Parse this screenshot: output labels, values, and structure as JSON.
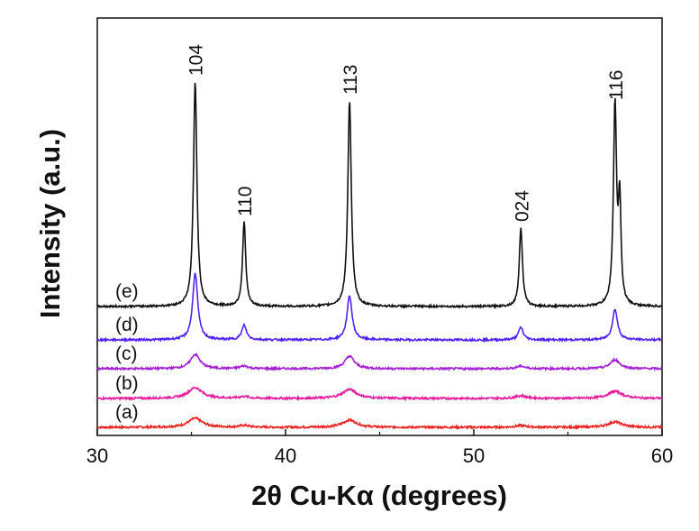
{
  "chart_data": {
    "type": "line",
    "xlabel": "2θ Cu-Kα (degrees)",
    "ylabel": "Intensity (a.u.)",
    "xlim": [
      30,
      60
    ],
    "xticks": [
      30,
      40,
      50,
      60
    ],
    "y_tick_labels": "none",
    "grid": false,
    "peak_labels": [
      {
        "text": "104",
        "x": 35.2
      },
      {
        "text": "110",
        "x": 37.8
      },
      {
        "text": "113",
        "x": 43.4
      },
      {
        "text": "024",
        "x": 52.5
      },
      {
        "text": "116",
        "x": 57.5
      }
    ],
    "series": [
      {
        "label": "(a)",
        "color": "#e8231f",
        "offset": 0,
        "peaks": [
          [
            35.2,
            10,
            0.45
          ],
          [
            37.8,
            2,
            0.3
          ],
          [
            43.4,
            8,
            0.45
          ],
          [
            52.5,
            2,
            0.35
          ],
          [
            57.5,
            6,
            0.45
          ]
        ]
      },
      {
        "label": "(b)",
        "color": "#e41b9c",
        "offset": 32,
        "peaks": [
          [
            35.2,
            12,
            0.45
          ],
          [
            37.8,
            2,
            0.3
          ],
          [
            43.4,
            10,
            0.45
          ],
          [
            52.5,
            3,
            0.35
          ],
          [
            57.5,
            8,
            0.45
          ]
        ]
      },
      {
        "label": "(c)",
        "color": "#a51fd6",
        "offset": 65,
        "peaks": [
          [
            35.2,
            16,
            0.3
          ],
          [
            37.8,
            3,
            0.25
          ],
          [
            43.4,
            14,
            0.3
          ],
          [
            52.5,
            3,
            0.25
          ],
          [
            57.5,
            10,
            0.3
          ]
        ]
      },
      {
        "label": "(d)",
        "color": "#4f22f0",
        "offset": 97,
        "peaks": [
          [
            35.2,
            74,
            0.16
          ],
          [
            37.8,
            16,
            0.15
          ],
          [
            43.4,
            49,
            0.16
          ],
          [
            52.5,
            14,
            0.15
          ],
          [
            57.5,
            34,
            0.16
          ]
        ]
      },
      {
        "label": "(e)",
        "color": "#111111",
        "offset": 134,
        "peaks": [
          [
            35.2,
            250,
            0.11
          ],
          [
            37.8,
            94,
            0.1
          ],
          [
            43.4,
            229,
            0.11
          ],
          [
            52.5,
            88,
            0.1
          ],
          [
            57.5,
            223,
            0.1
          ],
          [
            57.75,
            110,
            0.08
          ]
        ]
      }
    ]
  }
}
